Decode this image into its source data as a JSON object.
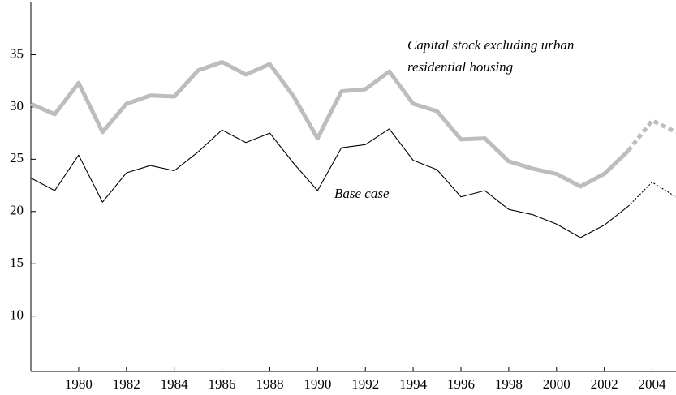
{
  "chart_data": {
    "type": "line",
    "x": [
      1978,
      1979,
      1980,
      1981,
      1982,
      1983,
      1984,
      1985,
      1986,
      1987,
      1988,
      1989,
      1990,
      1991,
      1992,
      1993,
      1994,
      1995,
      1996,
      1997,
      1998,
      1999,
      2000,
      2001,
      2002,
      2003,
      2004,
      2005
    ],
    "series": [
      {
        "name": "Capital stock excluding urban residential housing",
        "color": "#bdbdbd",
        "values": [
          30.3,
          29.3,
          32.3,
          27.6,
          30.3,
          31.1,
          31.0,
          33.5,
          34.3,
          33.1,
          34.1,
          31.0,
          27.0,
          31.5,
          31.7,
          33.4,
          30.3,
          29.6,
          26.9,
          27.0,
          24.8,
          24.1,
          23.6,
          22.4,
          23.6,
          25.8,
          28.7,
          27.6
        ]
      },
      {
        "name": "Base case",
        "color": "#000000",
        "values": [
          23.2,
          22.0,
          25.4,
          20.9,
          23.7,
          24.4,
          23.9,
          25.7,
          27.8,
          26.6,
          27.5,
          24.6,
          22.0,
          26.1,
          26.4,
          27.9,
          24.9,
          24.0,
          21.4,
          22.0,
          20.2,
          19.7,
          18.8,
          17.5,
          18.7,
          20.5,
          22.8,
          21.4
        ]
      }
    ],
    "projection_start": 2003,
    "annotations": [
      {
        "series": 0,
        "lines": [
          "Capital stock excluding urban",
          "residential housing"
        ]
      },
      {
        "series": 1,
        "lines": [
          "Base case"
        ]
      }
    ],
    "xlim": [
      1978,
      2005
    ],
    "xticks": [
      1980,
      1982,
      1984,
      1986,
      1988,
      1990,
      1992,
      1994,
      1996,
      1998,
      2000,
      2002,
      2004
    ],
    "ylim": [
      4.7,
      40
    ],
    "yticks": [
      10,
      15,
      20,
      25,
      30,
      35
    ]
  }
}
